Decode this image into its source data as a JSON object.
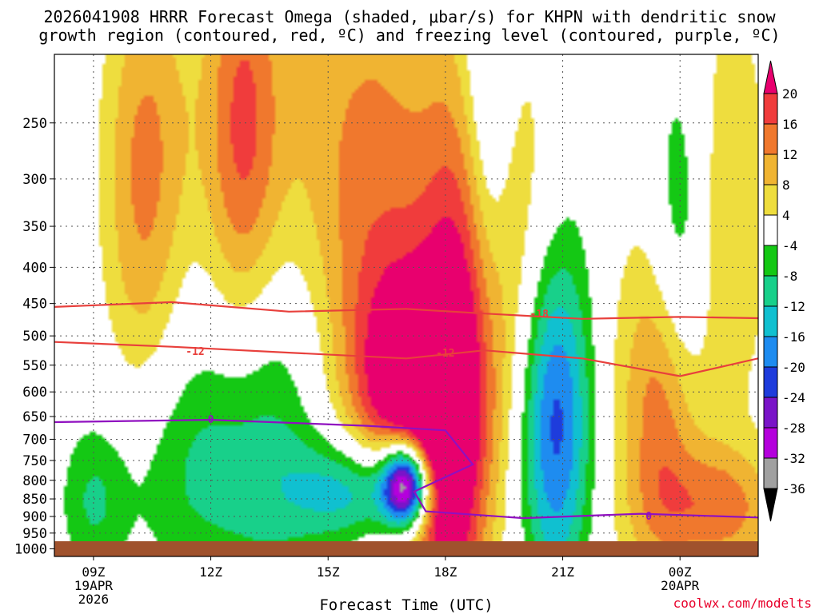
{
  "title": {
    "line1": "2026041908 HRRR Forecast Omega (shaded, μbar/s) for KHPN with dendritic snow",
    "line2": "growth region (contoured, red, ºC) and freezing level (contoured, purple, ºC)"
  },
  "credit": "coolwx.com/modelts",
  "chart_data": {
    "type": "heatmap",
    "title": "2026041908 HRRR Forecast Omega (shaded, μbar/s) for KHPN with dendritic snow growth region (contoured, red, ºC) and freezing level (contoured, purple, ºC)",
    "xlabel": "Forecast Time (UTC)",
    "ylabel": "",
    "x_ticks": [
      {
        "label": "09Z",
        "sub": [
          "19APR",
          "2026"
        ],
        "hour": 1
      },
      {
        "label": "12Z",
        "sub": [],
        "hour": 4
      },
      {
        "label": "15Z",
        "sub": [],
        "hour": 7
      },
      {
        "label": "18Z",
        "sub": [],
        "hour": 10
      },
      {
        "label": "21Z",
        "sub": [],
        "hour": 13
      },
      {
        "label": "00Z",
        "sub": [
          "20APR"
        ],
        "hour": 16
      }
    ],
    "xlim": [
      0,
      18
    ],
    "y_ticks": [
      250,
      300,
      350,
      400,
      450,
      500,
      550,
      600,
      650,
      700,
      750,
      800,
      850,
      900,
      950,
      1000
    ],
    "ylim": [
      1025,
      200
    ],
    "y_scale": "log",
    "grid": true,
    "colorbar": {
      "ticks": [
        20,
        16,
        12,
        8,
        4,
        -4,
        -8,
        -12,
        -16,
        -20,
        -24,
        -28,
        -32,
        -36
      ],
      "bands": [
        {
          "from": 20,
          "to": 24,
          "color": "#e8006e"
        },
        {
          "from": 16,
          "to": 20,
          "color": "#f03c3c"
        },
        {
          "from": 12,
          "to": 16,
          "color": "#f0782d"
        },
        {
          "from": 8,
          "to": 12,
          "color": "#f0b432"
        },
        {
          "from": 4,
          "to": 8,
          "color": "#eedd3e"
        },
        {
          "from": -4,
          "to": 4,
          "color": "#ffffff"
        },
        {
          "from": -8,
          "to": -4,
          "color": "#14c814"
        },
        {
          "from": -12,
          "to": -8,
          "color": "#18d08a"
        },
        {
          "from": -16,
          "to": -12,
          "color": "#10c0d0"
        },
        {
          "from": -20,
          "to": -16,
          "color": "#1e8cf0"
        },
        {
          "from": -24,
          "to": -20,
          "color": "#1e3cdc"
        },
        {
          "from": -28,
          "to": -24,
          "color": "#7a14c8"
        },
        {
          "from": -32,
          "to": -28,
          "color": "#b400dc"
        },
        {
          "from": -36,
          "to": -32,
          "color": "#a0a0a0"
        },
        {
          "from": -40,
          "to": -36,
          "color": "#000000"
        }
      ]
    },
    "omega_features": [
      {
        "hour": 2.5,
        "p": 255,
        "w": 1.2,
        "h": 150,
        "peak": 8
      },
      {
        "hour": 4.8,
        "p": 265,
        "w": 1.0,
        "h": 200,
        "peak": 16
      },
      {
        "hour": 2.2,
        "p": 385,
        "w": 1.0,
        "h": 300,
        "peak": 7
      },
      {
        "hour": 8.0,
        "p": 330,
        "w": 2.4,
        "h": 350,
        "peak": 14
      },
      {
        "hour": 10.8,
        "p": 450,
        "w": 1.2,
        "h": 350,
        "peak": 20
      },
      {
        "hour": 8.8,
        "p": 600,
        "w": 1.2,
        "h": 250,
        "peak": 18
      },
      {
        "hour": 10.0,
        "p": 780,
        "w": 0.9,
        "h": 400,
        "peak": 22
      },
      {
        "hour": 14.8,
        "p": 420,
        "w": 1.4,
        "h": 450,
        "peak": 7
      },
      {
        "hour": 15.8,
        "p": 640,
        "w": 0.9,
        "h": 330,
        "peak": 19
      },
      {
        "hour": 17.0,
        "p": 880,
        "w": 1.6,
        "h": 180,
        "peak": 13
      },
      {
        "hour": 17.2,
        "p": 330,
        "w": 1.2,
        "h": 250,
        "peak": 8
      },
      {
        "hour": 12.5,
        "p": 400,
        "w": 1.6,
        "h": 350,
        "peak": 6
      },
      {
        "hour": 5.5,
        "p": 650,
        "w": 1.8,
        "h": 400,
        "peak": -12
      },
      {
        "hour": 8.0,
        "p": 830,
        "w": 1.8,
        "h": 150,
        "peak": -20
      },
      {
        "hour": 9.0,
        "p": 810,
        "w": 0.6,
        "h": 110,
        "peak": -40
      },
      {
        "hour": 12.8,
        "p": 650,
        "w": 1.0,
        "h": 380,
        "peak": -26
      },
      {
        "hour": 11.1,
        "p": 300,
        "w": 0.7,
        "h": 250,
        "peak": -16
      },
      {
        "hour": 16.0,
        "p": 450,
        "w": 0.8,
        "h": 350,
        "peak": -16
      },
      {
        "hour": 14.0,
        "p": 270,
        "w": 1.4,
        "h": 180,
        "peak": -7
      },
      {
        "hour": 3.0,
        "p": 780,
        "w": 2.0,
        "h": 300,
        "peak": -7
      },
      {
        "hour": 1.0,
        "p": 860,
        "w": 0.8,
        "h": 200,
        "peak": -7
      }
    ],
    "contours": [
      {
        "name": "-18",
        "color": "#e8403c",
        "points": [
          [
            0,
            455
          ],
          [
            3,
            448
          ],
          [
            6,
            462
          ],
          [
            9,
            458
          ],
          [
            11,
            465
          ],
          [
            13.5,
            473
          ],
          [
            16,
            470
          ],
          [
            18,
            472
          ]
        ]
      },
      {
        "name": "-12",
        "color": "#e8403c",
        "points": [
          [
            0,
            510
          ],
          [
            3,
            518
          ],
          [
            6,
            528
          ],
          [
            9,
            538
          ],
          [
            11,
            524
          ],
          [
            13.5,
            538
          ],
          [
            16,
            570
          ],
          [
            18,
            538
          ]
        ]
      },
      {
        "name": "0",
        "color": "#9010c0",
        "points": [
          [
            0,
            662
          ],
          [
            4,
            657
          ],
          [
            8,
            670
          ],
          [
            10,
            680
          ],
          [
            10.7,
            760
          ],
          [
            9.2,
            830
          ],
          [
            9.5,
            885
          ],
          [
            12,
            905
          ],
          [
            15,
            892
          ],
          [
            18,
            903
          ]
        ]
      }
    ],
    "contour_labels": [
      {
        "text": "-18",
        "hour": 12.4,
        "p": 465
      },
      {
        "text": "-12",
        "hour": 3.6,
        "p": 525
      },
      {
        "text": "-12",
        "hour": 10.0,
        "p": 528
      },
      {
        "text": "0",
        "hour": 4.0,
        "p": 655
      },
      {
        "text": "0",
        "hour": 15.2,
        "p": 898
      }
    ],
    "ground_color": "#a0522d"
  }
}
